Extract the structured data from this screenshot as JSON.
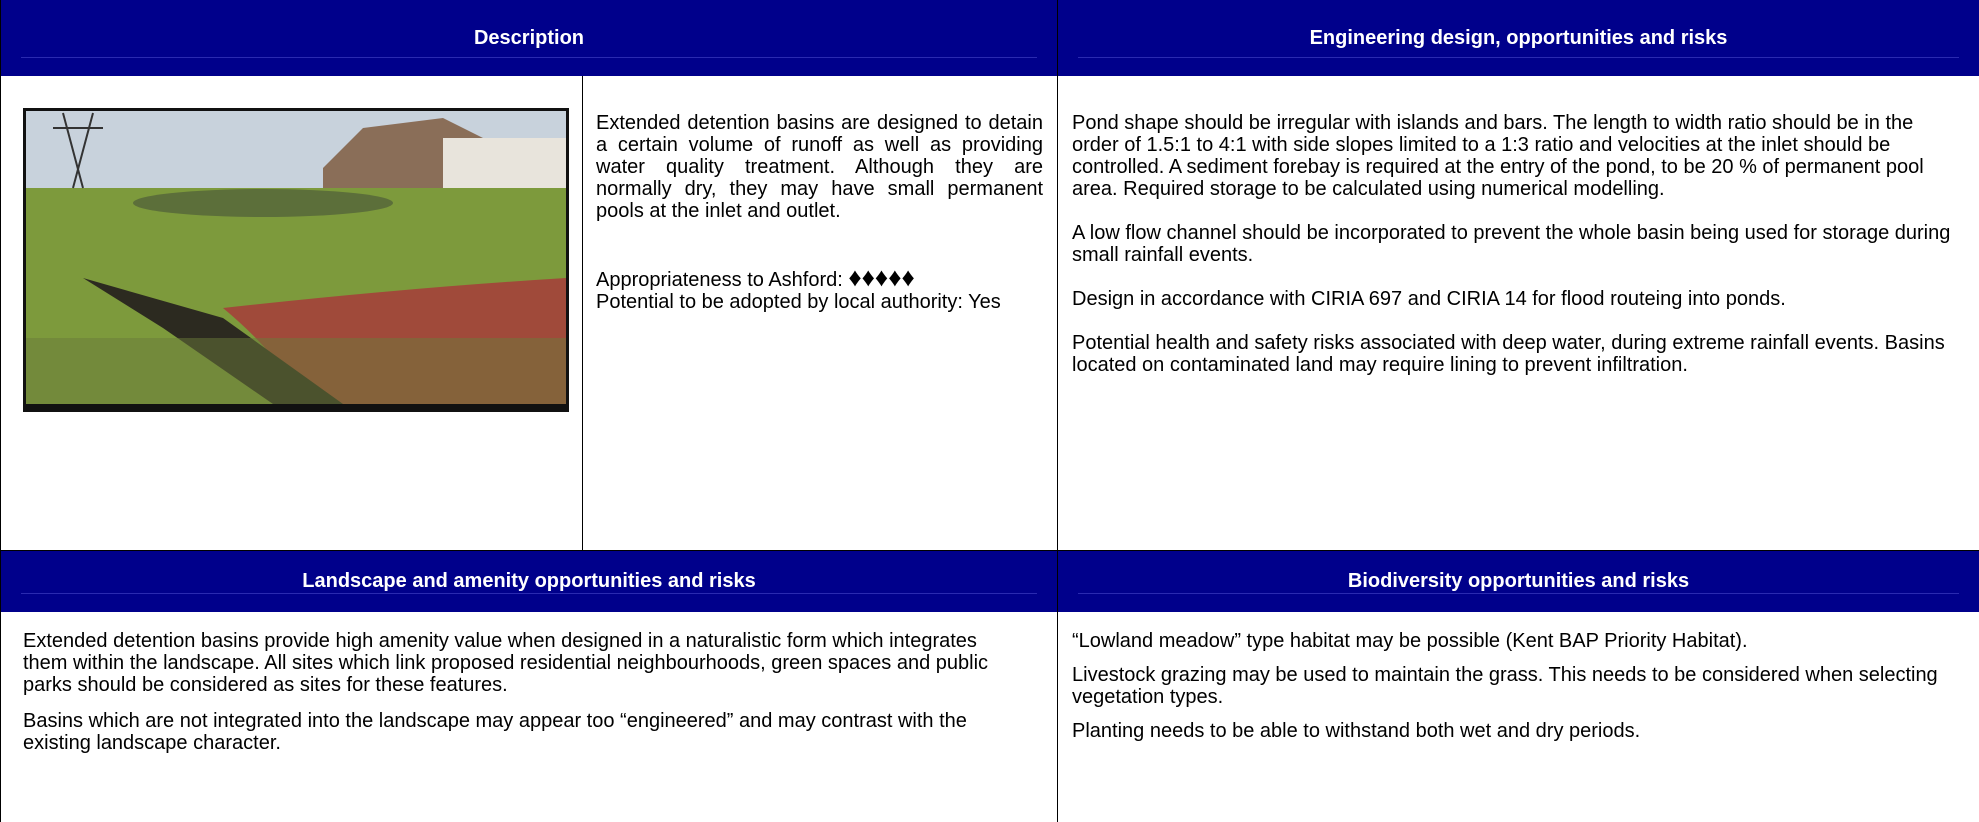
{
  "description": {
    "title": "Description",
    "text": "Extended detention basins are designed to detain a certain volume of runoff as well as providing water quality treatment. Although they are normally dry, they may have small permanent pools at the inlet and outlet.",
    "appropriateness": {
      "label": "Appropriateness to Ashford:",
      "rating": "♦♦♦♦♦"
    },
    "adoption": "Potential to be adopted by local authority: Yes"
  },
  "engineering": {
    "title": "Engineering design, opportunities and risks",
    "paragraphs": [
      "Pond shape should be irregular with islands and bars. The length to width ratio should be in the order of 1.5:1 to 4:1 with side slopes limited to a 1:3 ratio and velocities at the inlet should be controlled.  A sediment forebay is required at the entry of the pond, to be 20 % of permanent pool area. Required storage to be calculated using numerical modelling.",
      "A low flow channel should be incorporated to prevent the whole basin being used for storage during small rainfall events.",
      "Design in accordance with CIRIA 697 and CIRIA 14 for flood routeing into ponds.",
      "Potential health and safety risks associated with deep water, during extreme rainfall events. Basins located on contaminated land may require lining to prevent infiltration."
    ]
  },
  "landscape": {
    "title": "Landscape and amenity opportunities and risks",
    "paragraphs": [
      "Extended detention basins provide high amenity value when designed in a naturalistic form which integrates them within the landscape. All sites which link proposed residential neighbourhoods, green spaces and public parks should be considered as sites for these features.",
      "Basins which are not integrated into the landscape may appear too “engineered” and may contrast with the existing landscape character."
    ]
  },
  "biodiversity": {
    "title": "Biodiversity opportunities and risks",
    "paragraphs": [
      "“Lowland meadow” type habitat may be possible (Kent BAP Priority Habitat).",
      "Livestock grazing may be used to maintain the grass. This needs to be considered when selecting vegetation types.",
      "Planting needs to be able to withstand both wet and dry periods."
    ]
  }
}
